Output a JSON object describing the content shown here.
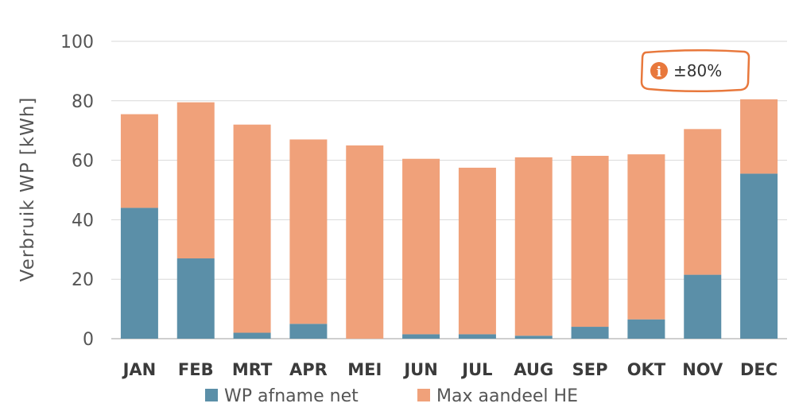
{
  "chart_data": {
    "type": "bar",
    "stacked": true,
    "ylabel": "Verbruik WP  [kWh]",
    "xlabel": "",
    "ylim": [
      0,
      100
    ],
    "yticks": [
      0,
      20,
      40,
      60,
      80,
      100
    ],
    "grid": true,
    "legend_position": "bottom",
    "categories": [
      "JAN",
      "FEB",
      "MRT",
      "APR",
      "MEI",
      "JUN",
      "JUL",
      "AUG",
      "SEP",
      "OKT",
      "NOV",
      "DEC"
    ],
    "series": [
      {
        "name": "WP afname net",
        "color": "#5b8fa8",
        "values": [
          44,
          27,
          2,
          5,
          0,
          1.5,
          1.5,
          1,
          4,
          6.5,
          21.5,
          55.5
        ]
      },
      {
        "name": "Max aandeel HE",
        "color": "#f0a17a",
        "values": [
          31.5,
          52.5,
          70,
          62,
          65,
          59,
          56,
          60,
          57.5,
          55.5,
          49,
          25
        ]
      }
    ],
    "annotation": {
      "icon": "info-icon",
      "text": "±80%",
      "color": "#e8783c"
    }
  }
}
